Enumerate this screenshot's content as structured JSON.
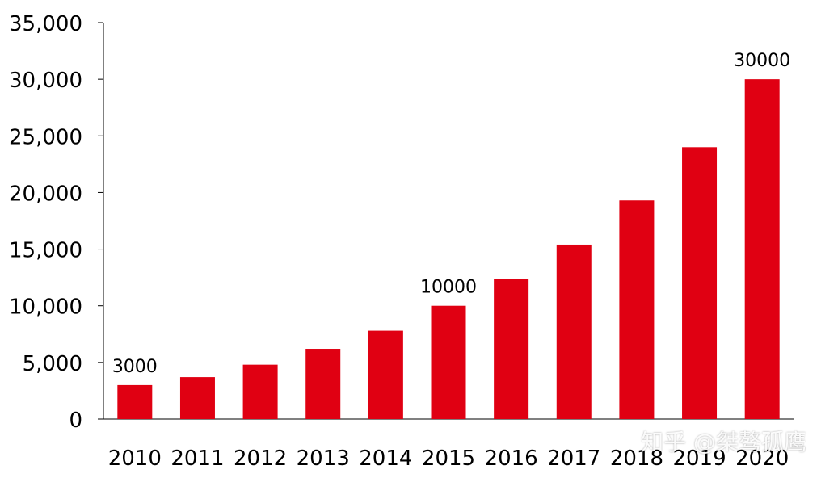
{
  "chart_data": {
    "type": "bar",
    "title": "",
    "xlabel": "",
    "ylabel": "",
    "categories": [
      "2010",
      "2011",
      "2012",
      "2013",
      "2014",
      "2015",
      "2016",
      "2017",
      "2018",
      "2019",
      "2020"
    ],
    "values": [
      3000,
      3700,
      4800,
      6200,
      7800,
      10000,
      12400,
      15400,
      19300,
      24000,
      30000
    ],
    "ylim": [
      0,
      35000
    ],
    "yticks": [
      0,
      5000,
      10000,
      15000,
      20000,
      25000,
      30000,
      35000
    ],
    "ytick_labels": [
      "0",
      "5,000",
      "10,000",
      "15,000",
      "20,000",
      "25,000",
      "30,000",
      "35,000"
    ],
    "data_labels": [
      {
        "category": "2010",
        "text": "3000"
      },
      {
        "category": "2015",
        "text": "10000"
      },
      {
        "category": "2020",
        "text": "30000"
      }
    ],
    "colors": {
      "bar": "#e00012",
      "axis": "#000000",
      "text": "#000000"
    },
    "grid": false,
    "legend": "none"
  },
  "watermark": {
    "text": "知乎 @桀骜孤鹰"
  }
}
